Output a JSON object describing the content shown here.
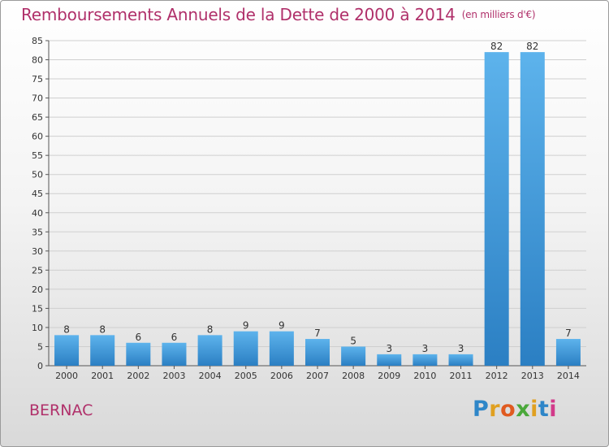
{
  "chart_data": {
    "type": "bar",
    "title": "Remboursements Annuels de la Dette de 2000 à 2014",
    "unit": "(en milliers d'€)",
    "categories": [
      "2000",
      "2001",
      "2002",
      "2003",
      "2004",
      "2005",
      "2006",
      "2007",
      "2008",
      "2009",
      "2010",
      "2011",
      "2012",
      "2013",
      "2014"
    ],
    "values": [
      8,
      8,
      6,
      6,
      8,
      9,
      9,
      7,
      5,
      3,
      3,
      3,
      82,
      82,
      7
    ],
    "ylim": [
      0,
      85
    ],
    "yticks": [
      0,
      5,
      10,
      15,
      20,
      25,
      30,
      35,
      40,
      45,
      50,
      55,
      60,
      65,
      70,
      75,
      80,
      85
    ],
    "grid": "horizontal",
    "colors": {
      "bar_light": "#5db3ec",
      "bar_dark": "#2b7fc3",
      "grid": "#cfcfcf",
      "title": "#b0306a"
    }
  },
  "footer": {
    "commune": "BERNAC",
    "logo_letters": [
      {
        "ch": "P",
        "color": "#2e86c8"
      },
      {
        "ch": "r",
        "color": "#e0a020"
      },
      {
        "ch": "o",
        "color": "#e05a20"
      },
      {
        "ch": "x",
        "color": "#4aa83a"
      },
      {
        "ch": "i",
        "color": "#e0a020"
      },
      {
        "ch": "t",
        "color": "#2e86c8"
      },
      {
        "ch": "i",
        "color": "#d23a8a"
      }
    ]
  }
}
